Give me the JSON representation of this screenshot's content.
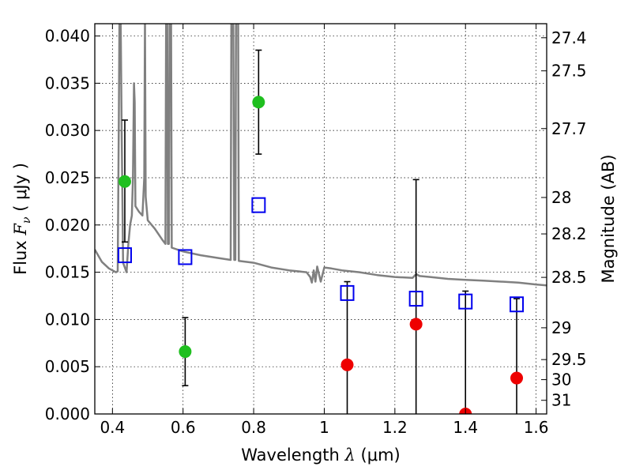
{
  "chart_data": {
    "type": "scatter",
    "xlabel": {
      "text": "Wavelength",
      "symbol": "λ",
      "unit": "(μm)"
    },
    "ylabel": {
      "text": "Flux",
      "symbol": "F",
      "subscript": "ν",
      "unit": "( μJy )"
    },
    "y2label": "Magnitude (AB)",
    "xlim": [
      0.35,
      1.63
    ],
    "ylim": [
      0.0,
      0.0413
    ],
    "grid": true,
    "grid_style": "dotted",
    "x_ticks": [
      {
        "value": 0.4,
        "label": "0.4"
      },
      {
        "value": 0.6,
        "label": "0.6"
      },
      {
        "value": 0.8,
        "label": "0.8"
      },
      {
        "value": 1.0,
        "label": "1"
      },
      {
        "value": 1.2,
        "label": "1.2"
      },
      {
        "value": 1.4,
        "label": "1.4"
      },
      {
        "value": 1.6,
        "label": "1.6"
      }
    ],
    "y_ticks": [
      {
        "value": 0.0,
        "label": "0.000"
      },
      {
        "value": 0.005,
        "label": "0.005"
      },
      {
        "value": 0.01,
        "label": "0.010"
      },
      {
        "value": 0.015,
        "label": "0.015"
      },
      {
        "value": 0.02,
        "label": "0.020"
      },
      {
        "value": 0.025,
        "label": "0.025"
      },
      {
        "value": 0.03,
        "label": "0.030"
      },
      {
        "value": 0.035,
        "label": "0.035"
      },
      {
        "value": 0.04,
        "label": "0.040"
      }
    ],
    "y2_ticks": [
      {
        "mag": 27.4,
        "label": "27.4"
      },
      {
        "mag": 27.5,
        "label": "27.5"
      },
      {
        "mag": 27.7,
        "label": "27.7"
      },
      {
        "mag": 28,
        "label": "28"
      },
      {
        "mag": 28.2,
        "label": "28.2"
      },
      {
        "mag": 28.5,
        "label": "28.5"
      },
      {
        "mag": 29,
        "label": "29"
      },
      {
        "mag": 29.5,
        "label": "29.5"
      },
      {
        "mag": 30,
        "label": "30"
      },
      {
        "mag": 31,
        "label": "31"
      }
    ],
    "series": [
      {
        "kind": "line",
        "color": "#808080",
        "points": [
          [
            0.35,
            0.0174
          ],
          [
            0.37,
            0.0161
          ],
          [
            0.39,
            0.0154
          ],
          [
            0.41,
            0.015
          ],
          [
            0.415,
            0.0151
          ],
          [
            0.418,
            0.031
          ],
          [
            0.42,
            0.043
          ],
          [
            0.423,
            0.043
          ],
          [
            0.426,
            0.03
          ],
          [
            0.43,
            0.016
          ],
          [
            0.44,
            0.015
          ],
          [
            0.445,
            0.018
          ],
          [
            0.45,
            0.02
          ],
          [
            0.455,
            0.021
          ],
          [
            0.458,
            0.025
          ],
          [
            0.461,
            0.035
          ],
          [
            0.463,
            0.033
          ],
          [
            0.465,
            0.022
          ],
          [
            0.475,
            0.0214
          ],
          [
            0.485,
            0.021
          ],
          [
            0.49,
            0.025
          ],
          [
            0.492,
            0.042
          ],
          [
            0.494,
            0.023
          ],
          [
            0.5,
            0.0205
          ],
          [
            0.52,
            0.0196
          ],
          [
            0.54,
            0.0185
          ],
          [
            0.55,
            0.018
          ],
          [
            0.552,
            0.043
          ],
          [
            0.555,
            0.043
          ],
          [
            0.557,
            0.018
          ],
          [
            0.56,
            0.018
          ],
          [
            0.562,
            0.043
          ],
          [
            0.566,
            0.043
          ],
          [
            0.568,
            0.0176
          ],
          [
            0.6,
            0.0172
          ],
          [
            0.65,
            0.0168
          ],
          [
            0.7,
            0.0165
          ],
          [
            0.735,
            0.0163
          ],
          [
            0.737,
            0.043
          ],
          [
            0.742,
            0.043
          ],
          [
            0.745,
            0.0163
          ],
          [
            0.748,
            0.0163
          ],
          [
            0.75,
            0.043
          ],
          [
            0.756,
            0.043
          ],
          [
            0.758,
            0.0162
          ],
          [
            0.8,
            0.016
          ],
          [
            0.85,
            0.0155
          ],
          [
            0.9,
            0.0152
          ],
          [
            0.95,
            0.015
          ],
          [
            0.96,
            0.0145
          ],
          [
            0.965,
            0.0139
          ],
          [
            0.97,
            0.0152
          ],
          [
            0.975,
            0.014
          ],
          [
            0.98,
            0.0156
          ],
          [
            0.99,
            0.014
          ],
          [
            1.0,
            0.0155
          ],
          [
            1.02,
            0.0154
          ],
          [
            1.05,
            0.0152
          ],
          [
            1.1,
            0.015
          ],
          [
            1.15,
            0.0147
          ],
          [
            1.2,
            0.0145
          ],
          [
            1.25,
            0.0144
          ],
          [
            1.26,
            0.0148
          ],
          [
            1.27,
            0.0146
          ],
          [
            1.3,
            0.0145
          ],
          [
            1.35,
            0.0143
          ],
          [
            1.4,
            0.0142
          ],
          [
            1.45,
            0.0141
          ],
          [
            1.5,
            0.014
          ],
          [
            1.55,
            0.0139
          ],
          [
            1.6,
            0.0137
          ],
          [
            1.63,
            0.0136
          ]
        ]
      },
      {
        "kind": "points",
        "marker": "circle",
        "color": "#1fbf1f",
        "points": [
          {
            "x": 0.435,
            "y": 0.0246,
            "err_low": 0.0182,
            "err_high": 0.0311
          },
          {
            "x": 0.606,
            "y": 0.0066,
            "err_low": 0.003,
            "err_high": 0.0102
          },
          {
            "x": 0.814,
            "y": 0.033,
            "err_low": 0.0275,
            "err_high": 0.0385
          }
        ]
      },
      {
        "kind": "points",
        "marker": "circle",
        "color": "#ee0000",
        "points": [
          {
            "x": 1.065,
            "y": 0.0052,
            "err_low": 0.0,
            "err_high": 0.014
          },
          {
            "x": 1.26,
            "y": 0.0095,
            "err_low": 0.0,
            "err_high": 0.0248
          },
          {
            "x": 1.4,
            "y": 0.0,
            "err_low": 0.0,
            "err_high": 0.013
          },
          {
            "x": 1.545,
            "y": 0.0038,
            "err_low": 0.0,
            "err_high": 0.0122
          }
        ]
      },
      {
        "kind": "points",
        "marker": "square-open",
        "color": "#0000ee",
        "points": [
          {
            "x": 0.435,
            "y": 0.0168
          },
          {
            "x": 0.606,
            "y": 0.0166
          },
          {
            "x": 0.814,
            "y": 0.0221
          },
          {
            "x": 1.065,
            "y": 0.0128
          },
          {
            "x": 1.26,
            "y": 0.0122
          },
          {
            "x": 1.4,
            "y": 0.0119
          },
          {
            "x": 1.545,
            "y": 0.0116
          }
        ]
      }
    ]
  }
}
